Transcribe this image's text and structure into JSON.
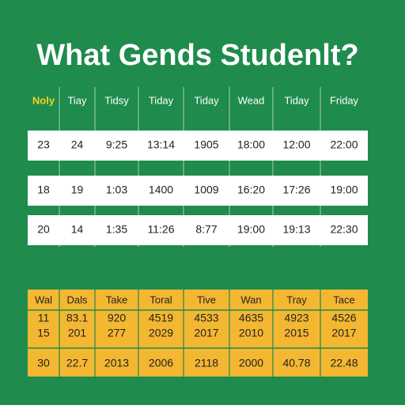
{
  "title": "What Gends Studenlt?",
  "table1": {
    "header": [
      "Noly",
      "Tiay",
      "Tidsy",
      "Tiday",
      "Tiday",
      "Wead",
      "Tiday",
      "Friday"
    ],
    "rows": [
      [
        "23",
        "24",
        "9:25",
        "13:14",
        "1905",
        "18:00",
        "12:00",
        "22:00"
      ],
      [
        "18",
        "19",
        "1:03",
        "1400",
        "1009",
        "16:20",
        "17:26",
        "19:00"
      ],
      [
        "20",
        "14",
        "1:35",
        "11:26",
        "8:77",
        "19:00",
        "19:13",
        "22:30"
      ]
    ]
  },
  "table2": {
    "header": [
      "Wal",
      "Dals",
      "Take",
      "Toral",
      "Tive",
      "Wan",
      "Tray",
      "Tace"
    ],
    "rows": [
      [
        "11",
        "83.1",
        "920",
        "4519",
        "4533",
        "4635",
        "4923",
        "4526"
      ],
      [
        "15",
        "201",
        "277",
        "2029",
        "2017",
        "2010",
        "2015",
        "2017"
      ],
      [
        "30",
        "22.7",
        "2013",
        "2006",
        "2118",
        "2000",
        "40.78",
        "22.48"
      ]
    ]
  }
}
